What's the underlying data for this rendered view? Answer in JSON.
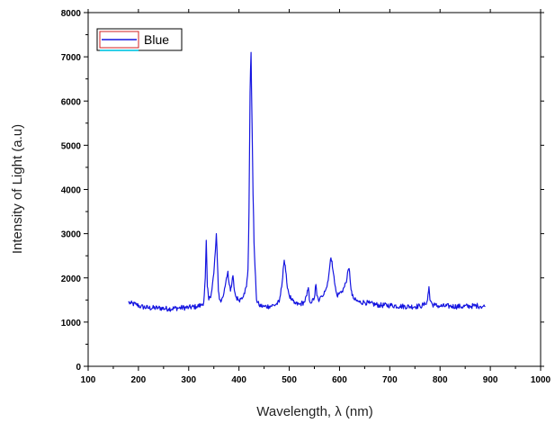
{
  "chart_data": {
    "type": "line",
    "title": "",
    "xlabel": "Wavelength, λ (nm)",
    "ylabel": "Intensity of Light (a.u)",
    "xlim": [
      100,
      1000
    ],
    "ylim": [
      0,
      8000
    ],
    "xticks": [
      "100",
      "200",
      "300",
      "400",
      "500",
      "600",
      "700",
      "800",
      "900",
      "1000"
    ],
    "yticks": [
      "0",
      "1000",
      "2000",
      "3000",
      "4000",
      "5000",
      "6000",
      "7000",
      "8000"
    ],
    "grid": false,
    "legend_position": "top-left",
    "series": [
      {
        "name": "Blue",
        "color": "#1515e0",
        "x": [
          180,
          185,
          195,
          205,
          220,
          240,
          260,
          280,
          300,
          315,
          325,
          330,
          333,
          335,
          337,
          340,
          345,
          350,
          353,
          355,
          357,
          359,
          362,
          365,
          370,
          375,
          378,
          380,
          383,
          385,
          388,
          390,
          393,
          395,
          398,
          400,
          405,
          410,
          415,
          418,
          420,
          422,
          424,
          426,
          428,
          430,
          432,
          435,
          440,
          450,
          460,
          470,
          480,
          485,
          488,
          490,
          493,
          495,
          500,
          505,
          510,
          520,
          530,
          535,
          538,
          540,
          545,
          550,
          553,
          555,
          558,
          560,
          565,
          570,
          575,
          580,
          583,
          585,
          588,
          590,
          593,
          595,
          600,
          605,
          610,
          615,
          618,
          620,
          622,
          625,
          630,
          640,
          650,
          660,
          680,
          700,
          720,
          740,
          760,
          770,
          775,
          778,
          780,
          785,
          790,
          800,
          820,
          840,
          860,
          875,
          880,
          890
        ],
        "y": [
          1450,
          1420,
          1400,
          1350,
          1320,
          1320,
          1300,
          1320,
          1330,
          1350,
          1380,
          1450,
          2000,
          2850,
          1800,
          1500,
          1650,
          2100,
          2600,
          3000,
          2400,
          1700,
          1500,
          1480,
          1650,
          2000,
          2150,
          1900,
          1700,
          1800,
          2050,
          1800,
          1600,
          1550,
          1520,
          1500,
          1550,
          1650,
          1800,
          2200,
          3500,
          6200,
          7100,
          5500,
          3900,
          2800,
          2200,
          1500,
          1380,
          1350,
          1360,
          1380,
          1450,
          1800,
          2200,
          2400,
          2150,
          1900,
          1600,
          1500,
          1420,
          1400,
          1450,
          1600,
          1780,
          1500,
          1450,
          1550,
          1850,
          1600,
          1500,
          1500,
          1580,
          1700,
          1800,
          2200,
          2450,
          2380,
          2100,
          1900,
          1700,
          1600,
          1650,
          1700,
          1800,
          2000,
          2200,
          2150,
          1850,
          1600,
          1500,
          1450,
          1450,
          1420,
          1380,
          1380,
          1360,
          1350,
          1360,
          1400,
          1500,
          1800,
          1500,
          1400,
          1380,
          1360,
          1360,
          1350,
          1360,
          1370,
          1360,
          1350
        ]
      }
    ]
  }
}
